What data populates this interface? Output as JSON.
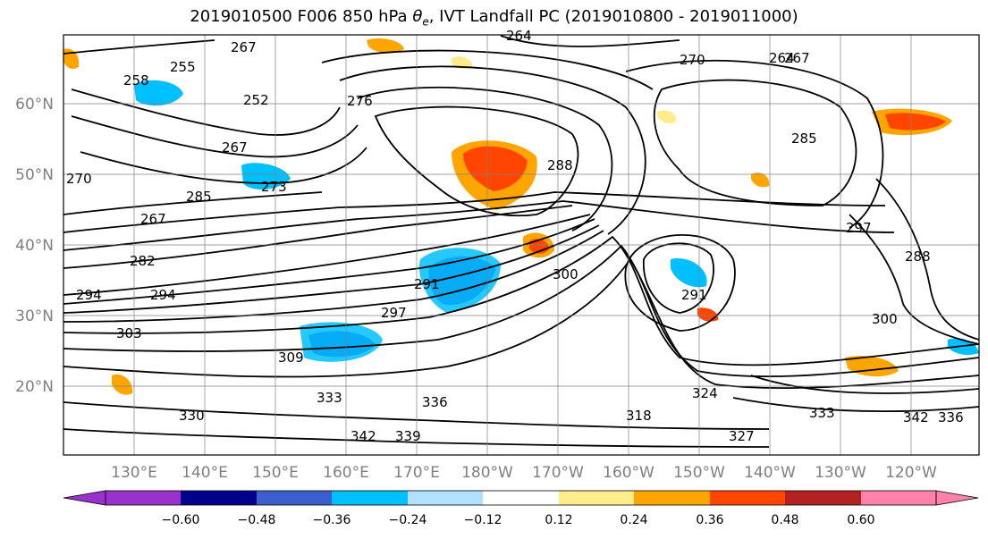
{
  "title": {
    "prefix": "2019010500 F006 850 hPa ",
    "symbol": "θ",
    "subscript": "e",
    "suffix": ", IVT Landfall PC (2019010800 - 2019011000)"
  },
  "map": {
    "lat_ticks": [
      "60°N",
      "50°N",
      "40°N",
      "30°N",
      "20°N"
    ],
    "lon_ticks": [
      "130°E",
      "140°E",
      "150°E",
      "160°E",
      "170°E",
      "180°W",
      "170°W",
      "160°W",
      "150°W",
      "140°W",
      "130°W",
      "120°W"
    ],
    "contour_labels": [
      "264",
      "258",
      "255",
      "267",
      "252",
      "267",
      "276",
      "273",
      "267",
      "282",
      "285",
      "270",
      "264",
      "267",
      "270",
      "288",
      "291",
      "285",
      "294",
      "288",
      "297",
      "291",
      "300",
      "309",
      "333",
      "336",
      "339",
      "342",
      "327",
      "333",
      "342",
      "336",
      "300",
      "297",
      "294",
      "303",
      "330",
      "324",
      "318"
    ],
    "contour_color": "#000000",
    "shade_colors": {
      "strong_negative": "#3a3fbf",
      "negative": "#00bfff",
      "weak_negative": "#aee3ff",
      "weak_positive": "#ffec8b",
      "positive": "#ffa500",
      "strong_positive": "#ff4500"
    }
  },
  "colorbar": {
    "colors": [
      "#9932cc",
      "#00008b",
      "#3a5fcd",
      "#00bfff",
      "#b0e2ff",
      "#ffffff",
      "#ffec8b",
      "#ffa500",
      "#ff4500",
      "#b22222",
      "#ff82ab"
    ],
    "tick_labels": [
      "−0.60",
      "−0.48",
      "−0.36",
      "−0.24",
      "−0.12",
      "0.12",
      "0.24",
      "0.36",
      "0.48",
      "0.60"
    ]
  }
}
